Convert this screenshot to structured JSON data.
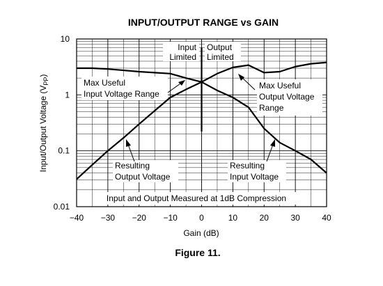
{
  "chart_data": {
    "type": "line",
    "title": "INPUT/OUTPUT RANGE vs GAIN",
    "caption": "Figure 11.",
    "xlabel": "Gain (dB)",
    "ylabel_main": "Input/Output Voltage (V",
    "ylabel_sub": "PP",
    "ylabel_end": ")",
    "xlim": [
      -40,
      40
    ],
    "ylim": [
      0.01,
      10
    ],
    "yscale": "log",
    "grid": true,
    "x_ticks": [
      -40,
      -30,
      -20,
      -10,
      0,
      10,
      20,
      30,
      40
    ],
    "x_tick_labels": [
      "−40",
      "−30",
      "−20",
      "−10",
      "0",
      "10",
      "20",
      "30",
      "40"
    ],
    "y_ticks": [
      0.01,
      0.1,
      1,
      10
    ],
    "y_tick_labels": [
      "0.01",
      "0.1",
      "1",
      "10"
    ],
    "series": [
      {
        "x": [
          -40,
          -35,
          -30,
          -25,
          -20,
          -15,
          -10,
          -5,
          0,
          5,
          10,
          15,
          20,
          25,
          30,
          35,
          40
        ],
        "values": [
          0.031,
          0.056,
          0.1,
          0.17,
          0.3,
          0.52,
          0.9,
          1.25,
          1.7,
          2.4,
          3.1,
          3.4,
          2.5,
          2.6,
          3.2,
          3.6,
          3.8
        ]
      },
      {
        "x": [
          -40,
          -35,
          -30,
          -25,
          -20,
          -15,
          -10,
          -5,
          0,
          5,
          10,
          15,
          20,
          25,
          30,
          35,
          40
        ],
        "values": [
          3.0,
          3.0,
          2.9,
          2.75,
          2.6,
          2.5,
          2.4,
          2.0,
          1.7,
          1.2,
          0.9,
          0.6,
          0.25,
          0.14,
          0.1,
          0.07,
          0.04
        ]
      }
    ],
    "divider": {
      "x": 0,
      "y_top": 7,
      "y_bottom": 0.22
    },
    "annotations": {
      "input_limited": [
        "Input",
        "Limited"
      ],
      "output_limited": [
        "Output",
        "Limited"
      ],
      "max_input": [
        "Max Useful",
        "Input Voltage Range"
      ],
      "max_output": [
        "Max Useful",
        "Output Voltage",
        "Range"
      ],
      "resulting_output": [
        "Resulting",
        "Output Voltage"
      ],
      "resulting_input": [
        "Resulting",
        "Input Voltage"
      ],
      "measured_note": "Input and Output Measured at 1dB Compression"
    }
  }
}
